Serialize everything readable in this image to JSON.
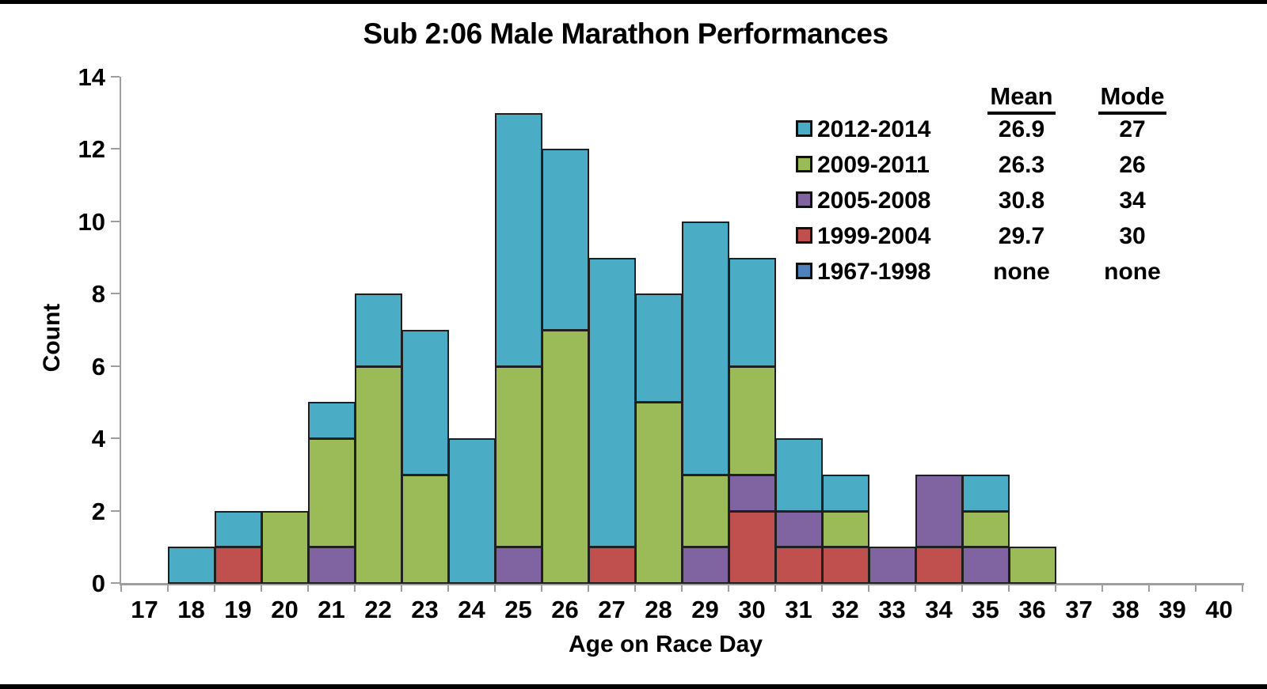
{
  "page": {
    "title": "Sub 2:06 Male Marathon Performances"
  },
  "chart_data": {
    "type": "bar",
    "stacked": true,
    "title": "Sub 2:06 Male Marathon Performances",
    "xlabel": "Age on Race Day",
    "ylabel": "Count",
    "x": [
      17,
      18,
      19,
      20,
      21,
      22,
      23,
      24,
      25,
      26,
      27,
      28,
      29,
      30,
      31,
      32,
      33,
      34,
      35,
      36,
      37,
      38,
      39,
      40
    ],
    "ylim": [
      0,
      14
    ],
    "yticks": [
      0,
      2,
      4,
      6,
      8,
      10,
      12,
      14
    ],
    "grid": "off",
    "legend_position": "upper right",
    "stack_order_bottom_to_top": [
      "1967-1998",
      "1999-2004",
      "2005-2008",
      "2009-2011",
      "2012-2014"
    ],
    "series": [
      {
        "name": "2012-2014",
        "color": "#4BACC6",
        "values": [
          0,
          1,
          1,
          0,
          1,
          2,
          4,
          4,
          7,
          5,
          8,
          3,
          7,
          3,
          2,
          1,
          0,
          0,
          1,
          0,
          0,
          0,
          0,
          0
        ]
      },
      {
        "name": "2009-2011",
        "color": "#9BBB59",
        "values": [
          0,
          0,
          0,
          2,
          3,
          6,
          3,
          0,
          5,
          7,
          0,
          5,
          2,
          3,
          0,
          1,
          0,
          0,
          1,
          1,
          0,
          0,
          0,
          0
        ]
      },
      {
        "name": "2005-2008",
        "color": "#8064A2",
        "values": [
          0,
          0,
          0,
          0,
          1,
          0,
          0,
          0,
          1,
          0,
          0,
          0,
          1,
          1,
          1,
          0,
          1,
          2,
          1,
          0,
          0,
          0,
          0,
          0
        ]
      },
      {
        "name": "1999-2004",
        "color": "#C0504D",
        "values": [
          0,
          0,
          1,
          0,
          0,
          0,
          0,
          0,
          0,
          0,
          1,
          0,
          0,
          2,
          1,
          1,
          0,
          1,
          0,
          0,
          0,
          0,
          0,
          0
        ]
      },
      {
        "name": "1967-1998",
        "color": "#4F81BD",
        "values": [
          0,
          0,
          0,
          0,
          0,
          0,
          0,
          0,
          0,
          0,
          0,
          0,
          0,
          0,
          0,
          0,
          0,
          0,
          0,
          0,
          0,
          0,
          0,
          0
        ]
      }
    ],
    "bar_totals_by_age": {
      "18": 1,
      "19": 2,
      "20": 2,
      "21": 5,
      "22": 8,
      "23": 7,
      "24": 4,
      "25": 13,
      "26": 12,
      "27": 9,
      "28": 8,
      "29": 10,
      "30": 9,
      "31": 4,
      "32": 3,
      "33": 1,
      "34": 3,
      "35": 3,
      "36": 1
    }
  },
  "legend_stats": {
    "mean_header": "Mean",
    "mode_header": "Mode",
    "rows": [
      {
        "label": "2012-2014",
        "color": "#4BACC6",
        "mean": "26.9",
        "mode": "27"
      },
      {
        "label": "2009-2011",
        "color": "#9BBB59",
        "mean": "26.3",
        "mode": "26"
      },
      {
        "label": "2005-2008",
        "color": "#8064A2",
        "mean": "30.8",
        "mode": "34"
      },
      {
        "label": "1999-2004",
        "color": "#C0504D",
        "mean": "29.7",
        "mode": "30"
      },
      {
        "label": "1967-1998",
        "color": "#4F81BD",
        "mean": "none",
        "mode": "none"
      }
    ]
  },
  "colors": {
    "axis": "#9E9E9E",
    "bar_border": "#1F1F1F",
    "text": "#000000",
    "frame_bar": "#000000"
  }
}
